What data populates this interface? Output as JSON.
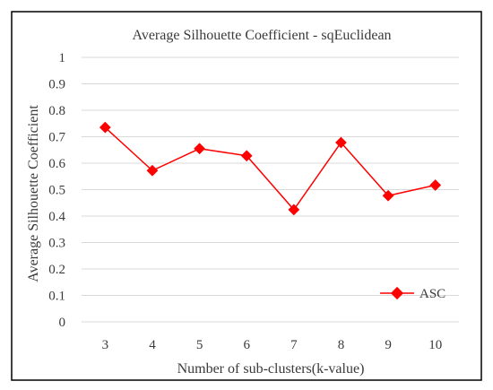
{
  "chart_data": {
    "type": "line",
    "title": "Average Silhouette Coefficient - sqEuclidean",
    "xlabel": "Number of sub-clusters(k-value)",
    "ylabel": "Average Silhouette Coefficient",
    "x": [
      "3",
      "4",
      "5",
      "6",
      "7",
      "8",
      "9",
      "10"
    ],
    "y_ticks": [
      "0",
      "0.1",
      "0.2",
      "0.3",
      "0.4",
      "0.5",
      "0.6",
      "0.7",
      "0.8",
      "0.9",
      "1"
    ],
    "ylim": [
      0,
      1
    ],
    "grid": true,
    "legend_position": "bottom-right",
    "series": [
      {
        "name": "ASC",
        "values": [
          0.735,
          0.572,
          0.655,
          0.628,
          0.424,
          0.678,
          0.477,
          0.517
        ],
        "color": "#ff0000",
        "marker": "diamond"
      }
    ]
  }
}
